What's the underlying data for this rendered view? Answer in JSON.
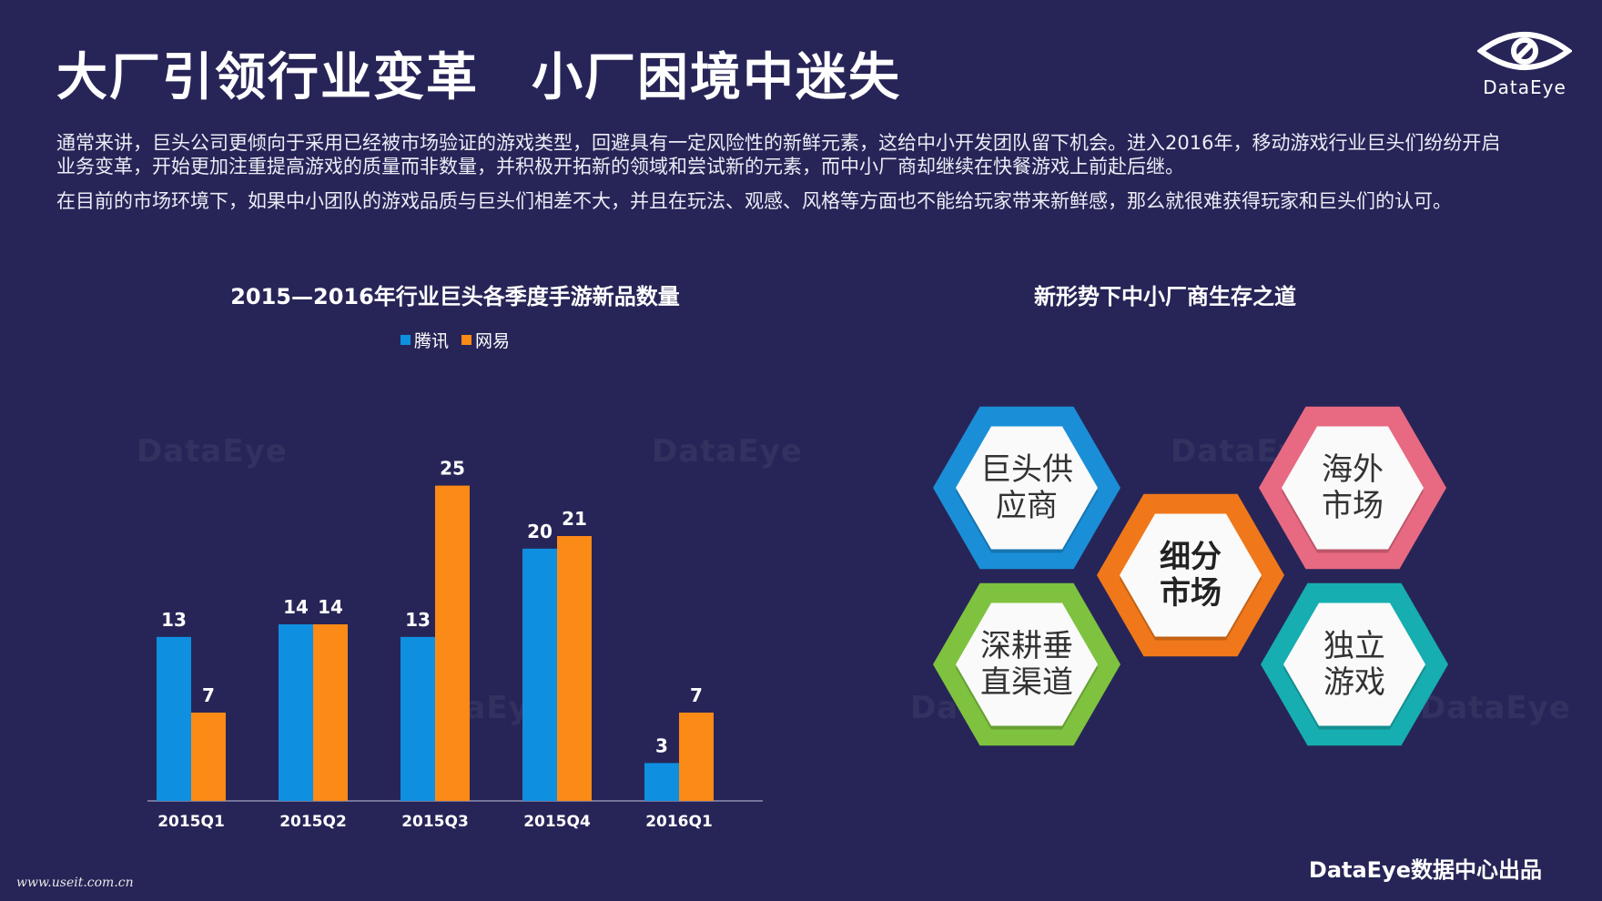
{
  "title": "大厂引领行业变革　小厂困境中迷失",
  "logo": {
    "text": "DataEye"
  },
  "paragraphs": [
    "通常来讲，巨头公司更倾向于采用已经被市场验证的游戏类型，回避具有一定风险性的新鲜元素，这给中小开发团队留下机会。进入2016年，移动游戏行业巨头们纷纷开启业务变革，开始更加注重提高游戏的质量而非数量，并积极开拓新的领域和尝试新的元素，而中小厂商却继续在快餐游戏上前赴后继。",
    "在目前的市场环境下，如果中小团队的游戏品质与巨头们相差不大，并且在玩法、观感、风格等方面也不能给玩家带来新鲜感，那么就很难获得玩家和巨头们的认可。"
  ],
  "chart_data": {
    "type": "bar",
    "title": "2015—2016年行业巨头各季度手游新品数量",
    "categories": [
      "2015Q1",
      "2015Q2",
      "2015Q3",
      "2015Q4",
      "2016Q1"
    ],
    "series": [
      {
        "name": "腾讯",
        "values": [
          13,
          14,
          13,
          20,
          3
        ],
        "color": "#0f8fe0"
      },
      {
        "name": "网易",
        "values": [
          7,
          14,
          25,
          21,
          7
        ],
        "color": "#fb8a17"
      }
    ],
    "ylim": [
      0,
      28
    ],
    "legend_position": "top",
    "grid": false
  },
  "strategy": {
    "title": "新形势下中小厂商生存之道",
    "items": [
      {
        "label": "巨头供\n应商",
        "color": "#1a8fd8"
      },
      {
        "label": "海外\n市场",
        "color": "#e86a82"
      },
      {
        "label": "细分\n市场",
        "color": "#f0781a"
      },
      {
        "label": "深耕垂\n直渠道",
        "color": "#7ec23f"
      },
      {
        "label": "独立\n游戏",
        "color": "#16aeb0"
      }
    ]
  },
  "watermark_text": "DataEye",
  "footer": "DataEye数据中心出品",
  "site_url": "www.useit.com.cn"
}
